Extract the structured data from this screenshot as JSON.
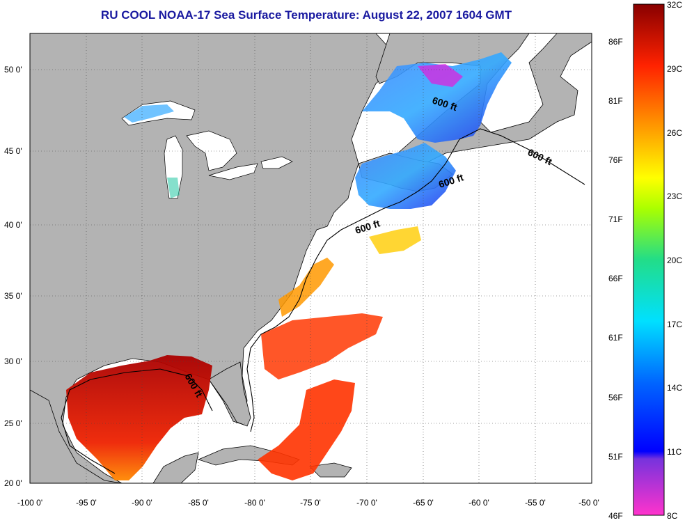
{
  "title": "RU COOL  NOAA-17  Sea Surface Temperature:  August 22, 2007 1604 GMT",
  "lat_ticks": [
    "50 0'",
    "45 0'",
    "40 0'",
    "35 0'",
    "30 0'",
    "25 0'",
    "20 0'"
  ],
  "lon_ticks": [
    "-100 0'",
    "-95 0'",
    "-90 0'",
    "-85 0'",
    "-80 0'",
    "-75 0'",
    "-70 0'",
    "-65 0'",
    "-60 0'",
    "-55 0'",
    "-50 0'"
  ],
  "contour_labels": [
    "600 ft",
    "600 ft",
    "600 ft",
    "600 ft",
    "600 ft"
  ],
  "colorbar": {
    "fahrenheit": [
      "86F",
      "81F",
      "76F",
      "71F",
      "66F",
      "61F",
      "56F",
      "51F",
      "46F"
    ],
    "celsius": [
      "32C",
      "29C",
      "26C",
      "23C",
      "20C",
      "17C",
      "14C",
      "11C",
      "8C"
    ]
  },
  "colors": {
    "land": "#b3b3b3",
    "ocean_nodata": "#ffffff",
    "title": "#1a1aa0"
  }
}
